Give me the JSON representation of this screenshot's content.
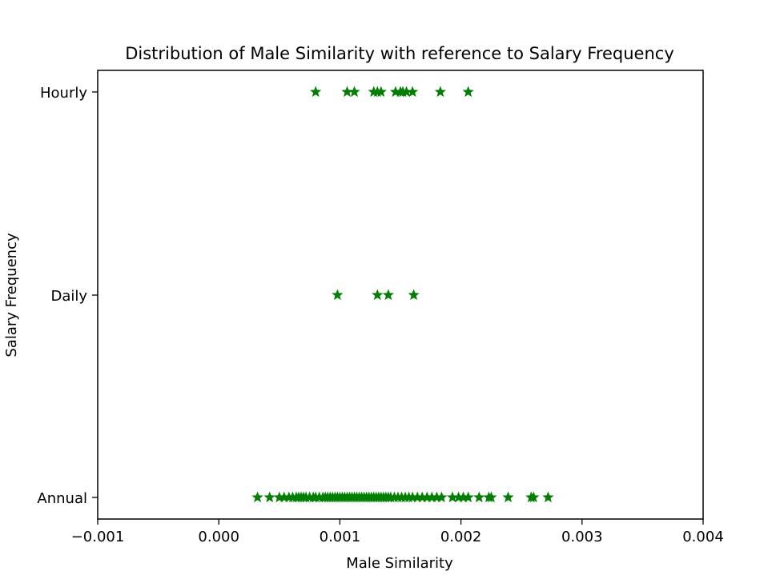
{
  "chart_data": {
    "type": "scatter",
    "title": "Distribution of Male Similarity with reference to Salary Frequency",
    "xlabel": "Male Similarity",
    "ylabel": "Salary Frequency",
    "xlim": [
      -0.001,
      0.004
    ],
    "x_ticks": [
      -0.001,
      0.0,
      0.001,
      0.002,
      0.003,
      0.004
    ],
    "x_tick_labels": [
      "−0.001",
      "0.000",
      "0.001",
      "0.002",
      "0.003",
      "0.004"
    ],
    "categories": [
      "Annual",
      "Daily",
      "Hourly"
    ],
    "grid": false,
    "marker": "star",
    "color": "#008000",
    "series": [
      {
        "category": "Hourly",
        "x": [
          0.0008,
          0.00106,
          0.00112,
          0.00128,
          0.00131,
          0.00134,
          0.00146,
          0.0015,
          0.00152,
          0.00155,
          0.0016,
          0.00183,
          0.00206
        ]
      },
      {
        "category": "Daily",
        "x": [
          0.00098,
          0.00131,
          0.0014,
          0.00161
        ]
      },
      {
        "category": "Annual",
        "x": [
          0.00032,
          0.00042,
          0.0005,
          0.00054,
          0.00058,
          0.00061,
          0.00064,
          0.00066,
          0.00068,
          0.0007,
          0.00072,
          0.00075,
          0.00078,
          0.0008,
          0.00083,
          0.00086,
          0.00088,
          0.0009,
          0.00092,
          0.00094,
          0.00096,
          0.00098,
          0.001,
          0.00102,
          0.00104,
          0.00106,
          0.00108,
          0.0011,
          0.00112,
          0.00114,
          0.00116,
          0.00118,
          0.0012,
          0.00122,
          0.00124,
          0.00126,
          0.00128,
          0.0013,
          0.00132,
          0.00134,
          0.00136,
          0.00138,
          0.0014,
          0.00142,
          0.00145,
          0.00148,
          0.00151,
          0.00154,
          0.00157,
          0.0016,
          0.00164,
          0.00168,
          0.00172,
          0.00176,
          0.0018,
          0.00184,
          0.00193,
          0.00198,
          0.00202,
          0.00206,
          0.00215,
          0.00223,
          0.00225,
          0.00239,
          0.00258,
          0.0026,
          0.00272
        ]
      }
    ]
  }
}
